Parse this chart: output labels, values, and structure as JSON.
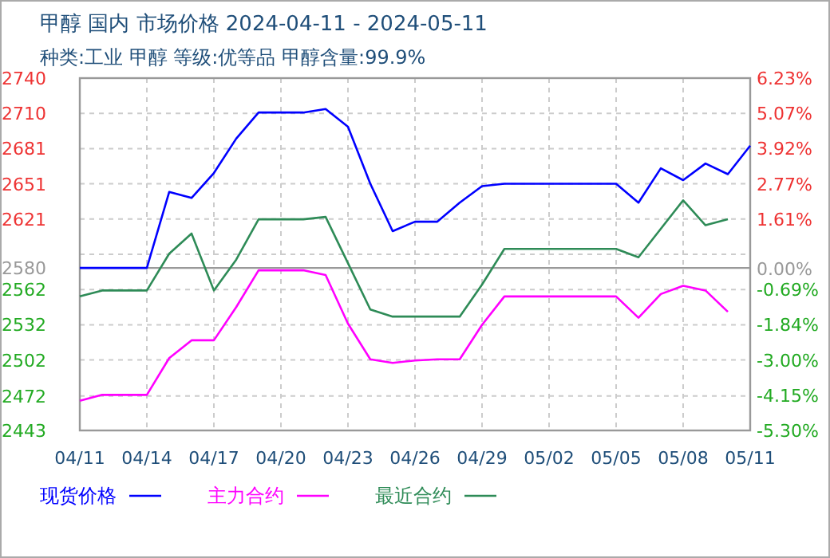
{
  "chart_data": {
    "type": "line",
    "title": "甲醇 国内 市场价格 2024-04-11 - 2024-05-11",
    "subtitle": "种类:工业 甲醇 等级:优等品 甲醇含量:99.9%",
    "x": [
      "--04-11",
      "--04-12",
      "--04-13",
      "--04-14",
      "--04-15",
      "--04-16",
      "--04-17",
      "--04-18",
      "--04-19",
      "--04-20",
      "--04-21",
      "--04-22",
      "--04-23",
      "--04-24",
      "--04-25",
      "--04-26",
      "--04-27",
      "--04-28",
      "--04-29",
      "--04-30",
      "--05-01",
      "--05-02",
      "--05-03",
      "--05-04",
      "--05-05",
      "--05-06",
      "--05-07",
      "--05-08",
      "--05-09",
      "--05-10",
      "--05-11"
    ],
    "series": [
      {
        "name": "现货价格",
        "color": "#0000ff",
        "values": [
          2580,
          2580,
          2580,
          2580,
          2644,
          2639,
          2660,
          2689,
          2711,
          2711,
          2711,
          2714,
          2699,
          2651,
          2611,
          2619,
          2619,
          2635,
          2649,
          2651,
          2651,
          2651,
          2651,
          2651,
          2651,
          2635,
          2664,
          2654,
          2668,
          2659,
          2683
        ]
      },
      {
        "name": "主力合约",
        "color": "#ff00ff",
        "values": [
          2468,
          2473,
          2473,
          2473,
          2504,
          2519,
          2519,
          2547,
          2578,
          2578,
          2578,
          2574,
          2533,
          2503,
          2500,
          2502,
          2503,
          2503,
          2532,
          2556,
          2556,
          2556,
          2556,
          2556,
          2556,
          2538,
          2558,
          2565,
          2561,
          2543,
          null
        ]
      },
      {
        "name": "最近合约",
        "color": "#2e8b57",
        "values": [
          2556,
          2561,
          2561,
          2561,
          2592,
          2609,
          2561,
          2587,
          2621,
          2621,
          2621,
          2623,
          2584,
          2545,
          2539,
          2539,
          2539,
          2539,
          2566,
          2596,
          2596,
          2596,
          2596,
          2596,
          2596,
          2589,
          2613,
          2637,
          2616,
          2621,
          null
        ]
      }
    ],
    "xlim": [
      "--04-11",
      "--05-11"
    ],
    "xticks": [
      {
        "value": "--04-11",
        "label": "04/11"
      },
      {
        "value": "--04-14",
        "label": "04/14"
      },
      {
        "value": "--04-17",
        "label": "04/17"
      },
      {
        "value": "--04-20",
        "label": "04/20"
      },
      {
        "value": "--04-23",
        "label": "04/23"
      },
      {
        "value": "--04-26",
        "label": "04/26"
      },
      {
        "value": "--04-29",
        "label": "04/29"
      },
      {
        "value": "--05-02",
        "label": "05/02"
      },
      {
        "value": "--05-05",
        "label": "05/05"
      },
      {
        "value": "--05-08",
        "label": "05/08"
      },
      {
        "value": "--05-11",
        "label": "05/11"
      }
    ],
    "ylim": [
      2443,
      2740
    ],
    "yticks": [
      2740,
      {
        "value": 2710.3,
        "label": "2710"
      },
      {
        "value": 2680.6,
        "label": "2681"
      },
      {
        "value": 2650.9,
        "label": "2651"
      },
      {
        "value": 2621.2,
        "label": "2621"
      },
      {
        "value": 2591.5,
        "label": null
      },
      {
        "value": 2561.8,
        "label": "2562"
      },
      {
        "value": 2532.1,
        "label": "2532"
      },
      {
        "value": 2502.4,
        "label": "2502"
      },
      {
        "value": 2472,
        "label": "2472"
      },
      2443
    ],
    "y2lim": [
      -5.3,
      6.23
    ],
    "y2ticks": [
      {
        "value": 6.23,
        "label": "6.23%"
      },
      {
        "value": 5.07,
        "label": "5.07%"
      },
      {
        "value": 3.924,
        "label": "3.92%"
      },
      {
        "value": 2.771,
        "label": "2.77%"
      },
      {
        "value": 1.61,
        "label": "1.61%"
      },
      {
        "value": 0,
        "label": "0.00%"
      },
      {
        "value": -0.688,
        "label": "-0.69%"
      },
      {
        "value": -1.841,
        "label": "-1.84%"
      },
      {
        "value": -3.0,
        "label": "-3.00%"
      },
      {
        "value": -4.147,
        "label": "-4.15%"
      },
      {
        "value": -5.3,
        "label": "-5.30%"
      }
    ],
    "ref_lines": [
      {
        "axis": "y",
        "value": 2580,
        "label": "2580",
        "color": "#999999"
      }
    ],
    "grid": true,
    "legend": "bottom left",
    "line_style": "solid",
    "marker": "none"
  }
}
